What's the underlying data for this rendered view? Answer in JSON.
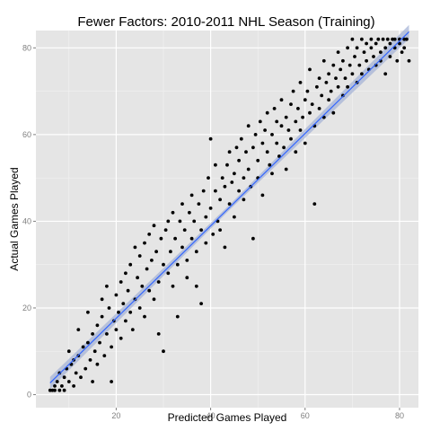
{
  "chart_data": {
    "type": "scatter",
    "title": "Fewer Factors: 2010-2011 NHL Season (Training)",
    "xlabel": "Predicted Games Played",
    "ylabel": "Actual Games Played",
    "xlim": [
      3,
      84
    ],
    "ylim": [
      -3,
      84
    ],
    "x_ticks": [
      20,
      40,
      60,
      80
    ],
    "y_ticks": [
      0,
      20,
      40,
      60,
      80
    ],
    "grid": true,
    "background": "#e5e5e5",
    "point_color": "#000000",
    "fit": {
      "method": "linear",
      "x_range": [
        6,
        82
      ],
      "y_at_range": [
        2.7,
        83.7
      ],
      "line_color": "#3366ff",
      "band_color": "#a3b0d6"
    },
    "series": [
      {
        "points": [
          [
            6,
            1
          ],
          [
            6.5,
            1
          ],
          [
            7,
            2
          ],
          [
            7,
            1
          ],
          [
            7.5,
            3
          ],
          [
            8,
            1
          ],
          [
            8,
            5
          ],
          [
            8.5,
            2
          ],
          [
            9,
            1
          ],
          [
            9,
            4
          ],
          [
            9.5,
            6
          ],
          [
            10,
            3
          ],
          [
            10,
            10
          ],
          [
            10.5,
            7
          ],
          [
            11,
            2
          ],
          [
            11,
            8
          ],
          [
            11.5,
            5
          ],
          [
            12,
            9
          ],
          [
            12,
            15
          ],
          [
            12.5,
            4
          ],
          [
            13,
            11
          ],
          [
            13.5,
            6
          ],
          [
            14,
            12
          ],
          [
            14,
            19
          ],
          [
            14.5,
            8
          ],
          [
            15,
            14
          ],
          [
            15,
            3
          ],
          [
            15.5,
            10
          ],
          [
            16,
            16
          ],
          [
            16,
            7
          ],
          [
            16.5,
            12
          ],
          [
            17,
            18
          ],
          [
            17,
            22
          ],
          [
            17.5,
            9
          ],
          [
            18,
            14
          ],
          [
            18,
            25
          ],
          [
            18.5,
            20
          ],
          [
            19,
            11
          ],
          [
            19,
            3
          ],
          [
            19.5,
            17
          ],
          [
            20,
            23
          ],
          [
            20,
            15
          ],
          [
            20.5,
            19
          ],
          [
            21,
            26
          ],
          [
            21,
            13
          ],
          [
            21.5,
            21
          ],
          [
            22,
            17
          ],
          [
            22,
            28
          ],
          [
            22.5,
            24
          ],
          [
            23,
            19
          ],
          [
            23,
            30
          ],
          [
            23.5,
            15
          ],
          [
            24,
            22
          ],
          [
            24,
            34
          ],
          [
            24.5,
            27
          ],
          [
            25,
            20
          ],
          [
            25,
            32
          ],
          [
            25.5,
            25
          ],
          [
            26,
            35
          ],
          [
            26,
            18
          ],
          [
            26.5,
            29
          ],
          [
            27,
            24
          ],
          [
            27,
            37
          ],
          [
            27.5,
            31
          ],
          [
            28,
            22
          ],
          [
            28,
            39
          ],
          [
            28.5,
            33
          ],
          [
            29,
            26
          ],
          [
            29,
            14
          ],
          [
            29.5,
            36
          ],
          [
            30,
            30
          ],
          [
            30,
            10
          ],
          [
            30.5,
            38
          ],
          [
            31,
            28
          ],
          [
            31,
            40
          ],
          [
            31.5,
            33
          ],
          [
            32,
            25
          ],
          [
            32,
            42
          ],
          [
            32.5,
            36
          ],
          [
            33,
            30
          ],
          [
            33,
            18
          ],
          [
            33.5,
            40
          ],
          [
            34,
            34
          ],
          [
            34,
            44
          ],
          [
            34.5,
            38
          ],
          [
            35,
            27
          ],
          [
            35,
            31
          ],
          [
            35.5,
            42
          ],
          [
            36,
            36
          ],
          [
            36,
            46
          ],
          [
            36.5,
            40
          ],
          [
            37,
            33
          ],
          [
            37,
            25
          ],
          [
            37.5,
            44
          ],
          [
            38,
            38
          ],
          [
            38,
            21
          ],
          [
            38.5,
            47
          ],
          [
            39,
            41
          ],
          [
            39,
            35
          ],
          [
            39.5,
            50
          ],
          [
            40,
            43
          ],
          [
            40,
            59
          ],
          [
            40.5,
            37
          ],
          [
            41,
            47
          ],
          [
            41,
            53
          ],
          [
            41.5,
            40
          ],
          [
            42,
            45
          ],
          [
            42,
            38
          ],
          [
            42.5,
            50
          ],
          [
            43,
            48
          ],
          [
            43,
            34
          ],
          [
            43.5,
            53
          ],
          [
            44,
            44
          ],
          [
            44,
            56
          ],
          [
            44.5,
            49
          ],
          [
            45,
            51
          ],
          [
            45,
            41
          ],
          [
            45.5,
            57
          ],
          [
            46,
            47
          ],
          [
            46,
            54
          ],
          [
            46.5,
            59
          ],
          [
            47,
            50
          ],
          [
            47,
            45
          ],
          [
            47.5,
            56
          ],
          [
            48,
            52
          ],
          [
            48,
            62
          ],
          [
            48.5,
            48
          ],
          [
            49,
            57
          ],
          [
            49,
            36
          ],
          [
            49.5,
            60
          ],
          [
            50,
            54
          ],
          [
            50,
            50
          ],
          [
            50.5,
            63
          ],
          [
            51,
            58
          ],
          [
            51,
            46
          ],
          [
            51.5,
            61
          ],
          [
            52,
            56
          ],
          [
            52,
            65
          ],
          [
            52.5,
            53
          ],
          [
            53,
            60
          ],
          [
            53,
            51
          ],
          [
            53.5,
            66
          ],
          [
            54,
            58
          ],
          [
            54,
            63
          ],
          [
            54.5,
            55
          ],
          [
            55,
            62
          ],
          [
            55,
            68
          ],
          [
            55.5,
            57
          ],
          [
            56,
            64
          ],
          [
            56,
            52
          ],
          [
            56.5,
            61
          ],
          [
            57,
            67
          ],
          [
            57,
            59
          ],
          [
            57.5,
            70
          ],
          [
            58,
            63
          ],
          [
            58,
            56
          ],
          [
            58.5,
            66
          ],
          [
            59,
            61
          ],
          [
            59,
            72
          ],
          [
            59.5,
            64
          ],
          [
            60,
            68
          ],
          [
            60,
            58
          ],
          [
            60.5,
            70
          ],
          [
            61,
            65
          ],
          [
            61,
            75
          ],
          [
            61.5,
            67
          ],
          [
            62,
            62
          ],
          [
            62,
            44
          ],
          [
            62.5,
            71
          ],
          [
            63,
            66
          ],
          [
            63,
            73
          ],
          [
            63.5,
            69
          ],
          [
            64,
            64
          ],
          [
            64,
            77
          ],
          [
            64.5,
            72
          ],
          [
            65,
            68
          ],
          [
            65,
            74
          ],
          [
            65.5,
            70
          ],
          [
            66,
            76
          ],
          [
            66,
            65
          ],
          [
            66.5,
            73
          ],
          [
            67,
            71
          ],
          [
            67,
            79
          ],
          [
            67.5,
            75
          ],
          [
            68,
            69
          ],
          [
            68,
            77
          ],
          [
            68.5,
            73
          ],
          [
            69,
            80
          ],
          [
            69,
            71
          ],
          [
            69.5,
            76
          ],
          [
            70,
            74
          ],
          [
            70,
            82
          ],
          [
            70.5,
            78
          ],
          [
            71,
            72
          ],
          [
            71,
            80
          ],
          [
            71.5,
            76
          ],
          [
            72,
            82
          ],
          [
            72,
            74
          ],
          [
            72.5,
            79
          ],
          [
            73,
            77
          ],
          [
            73,
            81
          ],
          [
            73.5,
            75
          ],
          [
            74,
            80
          ],
          [
            74,
            82
          ],
          [
            74.5,
            78
          ],
          [
            75,
            76
          ],
          [
            75,
            81
          ],
          [
            75.5,
            82
          ],
          [
            76,
            79
          ],
          [
            76,
            77
          ],
          [
            76.5,
            82
          ],
          [
            77,
            80
          ],
          [
            77,
            74
          ],
          [
            77.5,
            82
          ],
          [
            78,
            81
          ],
          [
            78,
            78
          ],
          [
            78.5,
            82
          ],
          [
            79,
            80
          ],
          [
            79,
            82
          ],
          [
            79.5,
            77
          ],
          [
            80,
            81
          ],
          [
            80,
            82
          ],
          [
            80.5,
            79
          ],
          [
            81,
            82
          ],
          [
            81,
            80
          ],
          [
            81.5,
            82
          ],
          [
            82,
            77
          ]
        ]
      }
    ]
  }
}
